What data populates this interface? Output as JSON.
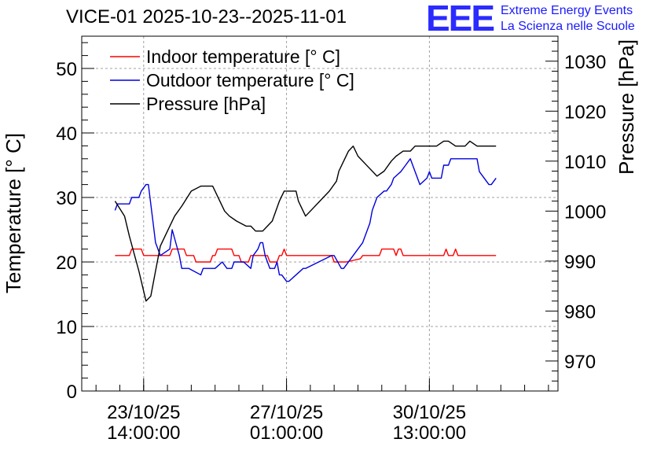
{
  "header": {
    "title": "VICE-01 2025-10-23--2025-11-01",
    "logo_mark": "EEE",
    "logo_line1": "Extreme Energy Events",
    "logo_line2": "La Scienza nelle Scuole"
  },
  "chart_data": {
    "type": "line",
    "title": "VICE-01 2025-10-23--2025-11-01",
    "ylabel": "Temperature [° C]",
    "y2label": "Pressure [hPa]",
    "ylim": [
      0,
      55
    ],
    "y2lim": [
      964,
      1035
    ],
    "xlim": [
      0,
      10
    ],
    "xlabel": "",
    "grid": true,
    "legend_position": "top-left",
    "yticks": [
      "0",
      "10",
      "20",
      "30",
      "40",
      "50"
    ],
    "y2ticks": [
      "970",
      "980",
      "990",
      "1000",
      "1010",
      "1020",
      "1030"
    ],
    "xticks": [
      {
        "x": 1.3,
        "date": "23/10/25",
        "time": "14:00:00"
      },
      {
        "x": 4.3,
        "date": "27/10/25",
        "time": "01:00:00"
      },
      {
        "x": 7.3,
        "date": "30/10/25",
        "time": "13:00:00"
      }
    ],
    "series": [
      {
        "name": "Indoor temperature [° C]",
        "axis": "left",
        "color": "#ff0000",
        "x": [
          0.7,
          1.0,
          1.05,
          1.25,
          1.3,
          1.5,
          1.85,
          1.9,
          2.15,
          2.2,
          2.35,
          2.4,
          2.7,
          2.75,
          2.8,
          2.85,
          3.15,
          3.2,
          3.3,
          3.35,
          3.5,
          3.55,
          3.9,
          3.95,
          4.1,
          4.15,
          4.2,
          4.25,
          4.3,
          4.35,
          5.25,
          5.3,
          5.5,
          5.55,
          5.85,
          5.9,
          5.95,
          6.25,
          6.3,
          6.55,
          6.6,
          6.65,
          6.7,
          6.75,
          7.6,
          7.65,
          7.7,
          7.8,
          7.85,
          7.9,
          8.7
        ],
        "values": [
          21,
          21,
          22,
          22,
          21,
          21,
          21,
          22,
          22,
          21,
          21,
          20,
          20,
          21,
          21,
          22,
          22,
          21,
          21,
          20,
          20,
          21,
          21,
          20,
          20,
          21,
          21,
          22,
          21,
          21,
          21,
          20,
          20,
          20,
          20.5,
          21,
          21,
          21,
          22,
          22,
          21,
          22,
          22,
          21,
          21,
          22,
          21,
          21,
          22,
          21,
          21
        ]
      },
      {
        "name": "Outdoor temperature [° C]",
        "axis": "left",
        "color": "#0000dd",
        "x": [
          0.7,
          0.75,
          1.0,
          1.05,
          1.2,
          1.25,
          1.35,
          1.4,
          1.5,
          1.55,
          1.65,
          1.85,
          1.9,
          2.05,
          2.1,
          2.25,
          2.5,
          2.55,
          2.8,
          2.95,
          3.05,
          3.15,
          3.2,
          3.4,
          3.55,
          3.6,
          3.7,
          3.75,
          3.8,
          3.85,
          3.95,
          4.05,
          4.1,
          4.15,
          4.2,
          4.3,
          4.35,
          4.65,
          4.7,
          5.25,
          5.3,
          5.45,
          5.5,
          5.9,
          6.05,
          6.1,
          6.2,
          6.35,
          6.4,
          6.5,
          6.55,
          6.7,
          6.8,
          6.9,
          7.0,
          7.1,
          7.25,
          7.3,
          7.35,
          7.55,
          7.6,
          7.7,
          7.75,
          7.8,
          8.3,
          8.35,
          8.45,
          8.55,
          8.6,
          8.7
        ],
        "values": [
          28,
          29,
          29,
          30,
          30,
          31,
          32,
          32,
          26,
          23,
          21,
          22,
          25,
          21,
          19,
          19,
          18,
          19,
          19,
          20,
          19,
          19,
          20,
          20,
          19,
          21,
          22,
          23,
          23,
          21,
          19,
          19,
          20,
          18,
          18,
          17,
          17,
          19,
          19,
          21,
          21,
          19,
          19,
          23,
          26,
          28,
          30,
          31,
          31,
          32,
          33,
          34,
          35,
          36,
          34,
          32,
          33,
          34,
          33,
          33,
          35,
          35,
          36,
          36,
          36,
          34,
          33,
          32,
          32,
          33
        ]
      },
      {
        "name": "Pressure [hPa]",
        "axis": "right",
        "color": "#000000",
        "x": [
          0.7,
          0.9,
          1.0,
          1.2,
          1.35,
          1.45,
          1.55,
          1.65,
          1.8,
          1.95,
          2.1,
          2.3,
          2.5,
          2.6,
          2.75,
          2.8,
          2.9,
          3.0,
          3.1,
          3.25,
          3.45,
          3.55,
          3.65,
          3.8,
          3.9,
          4.0,
          4.15,
          4.25,
          4.4,
          4.5,
          4.55,
          4.7,
          4.8,
          5.0,
          5.2,
          5.35,
          5.4,
          5.5,
          5.6,
          5.7,
          5.8,
          6.0,
          6.2,
          6.35,
          6.5,
          6.6,
          6.75,
          6.9,
          7.0,
          7.2,
          7.3,
          7.4,
          7.45,
          7.6,
          7.7,
          7.85,
          7.95,
          8.05,
          8.15,
          8.3,
          8.45,
          8.55,
          8.7
        ],
        "values": [
          1002,
          999,
          995,
          988,
          982,
          983,
          988,
          993,
          996,
          999,
          1001,
          1004,
          1005,
          1005,
          1005,
          1004,
          1002,
          1000,
          999,
          998,
          997,
          997,
          996,
          996,
          997,
          998,
          1002,
          1004,
          1004,
          1004,
          1002,
          999,
          1000,
          1002,
          1004,
          1006,
          1008,
          1010,
          1012,
          1013,
          1011,
          1009,
          1007,
          1008,
          1010,
          1011,
          1012,
          1012,
          1013,
          1013,
          1013,
          1013,
          1013,
          1014,
          1014,
          1013,
          1013,
          1013,
          1014,
          1013,
          1013,
          1013,
          1013
        ]
      }
    ]
  }
}
